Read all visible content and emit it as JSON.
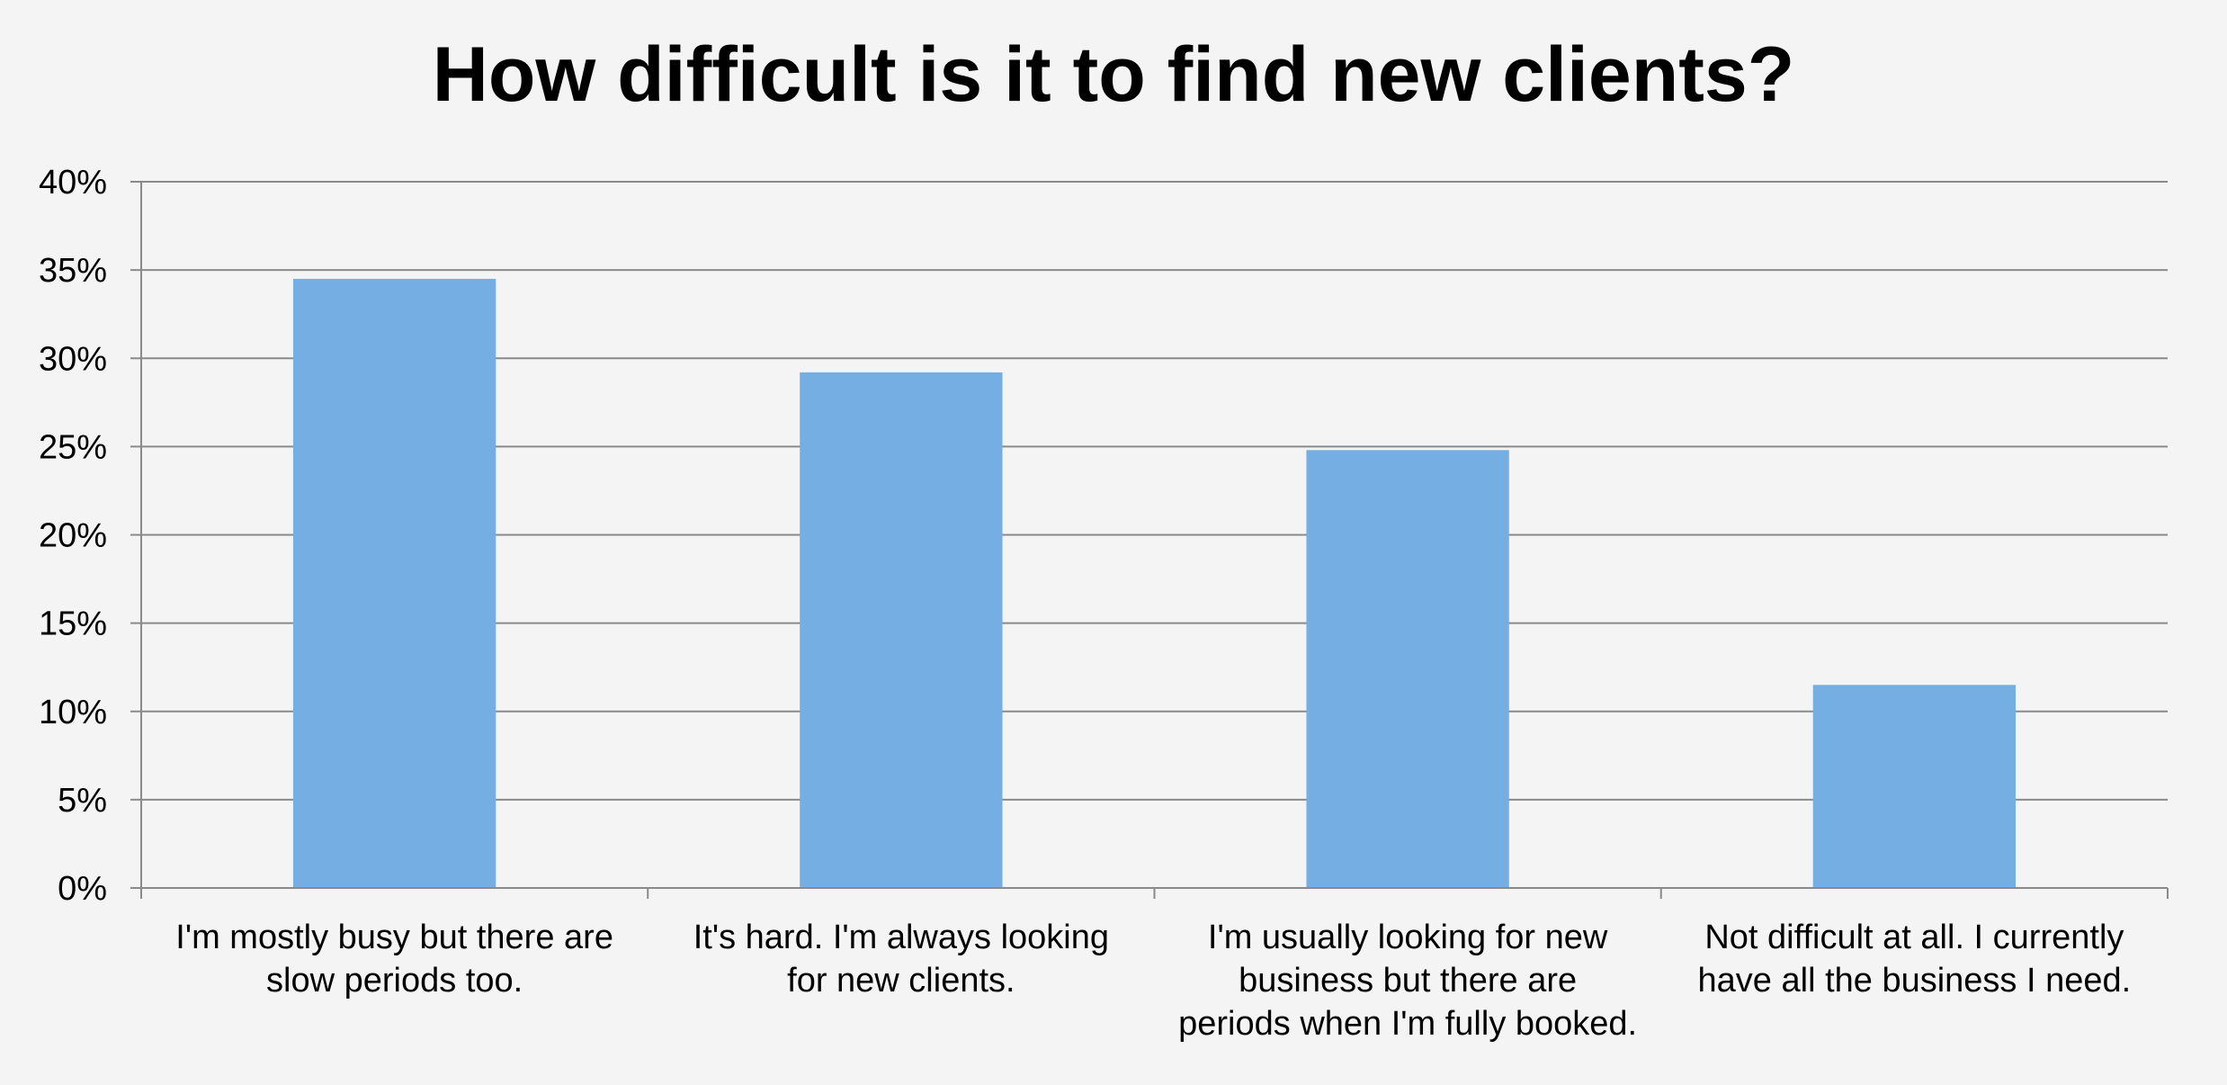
{
  "chart_data": {
    "type": "bar",
    "title": "How difficult is it to find new clients?",
    "xlabel": "",
    "ylabel": "",
    "categories": [
      [
        "I'm mostly busy but there are",
        "slow periods too."
      ],
      [
        "It's hard. I'm always looking",
        "for new clients."
      ],
      [
        "I'm usually looking for new",
        "business but there are",
        "periods when I'm fully booked."
      ],
      [
        "Not difficult at all. I currently",
        "have all the business I need."
      ]
    ],
    "values": [
      34.5,
      29.2,
      24.8,
      11.5
    ],
    "ylim": [
      0,
      40
    ],
    "yticks": [
      0,
      5,
      10,
      15,
      20,
      25,
      30,
      35,
      40
    ],
    "ytick_format": "percent",
    "grid": true,
    "legend": "none",
    "bar_color": "#74aee2",
    "grid_color": "#8a8a8a"
  }
}
